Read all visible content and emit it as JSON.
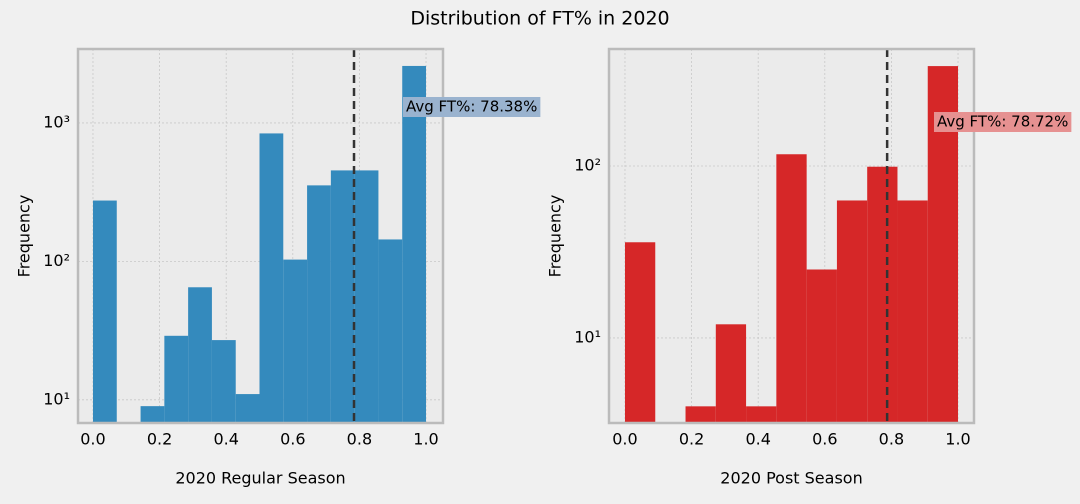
{
  "title": "Distribution of FT% in 2020",
  "chart_data": [
    {
      "type": "histogram",
      "xlabel": "2020 Regular Season",
      "ylabel": "Frequency",
      "log_y": true,
      "grid": true,
      "color": "#348abd",
      "bins": [
        0,
        0.0714,
        0.1429,
        0.2143,
        0.2857,
        0.3571,
        0.4286,
        0.5,
        0.5714,
        0.6429,
        0.7143,
        0.7857,
        0.8571,
        0.9286,
        1
      ],
      "values": [
        275,
        0,
        9,
        29,
        65,
        27,
        11,
        840,
        103,
        354,
        454,
        454,
        144,
        2580
      ],
      "xlim": [
        -0.045,
        1.051
      ],
      "ylim": [
        6.8,
        3420
      ],
      "xticks": [
        {
          "value": 0,
          "label": "0.0"
        },
        0.2,
        0.4,
        0.6,
        0.8,
        {
          "value": 1,
          "label": "1.0"
        }
      ],
      "yticks": [
        {
          "value": 10,
          "label": "10¹"
        },
        {
          "value": 100,
          "label": "10²"
        },
        {
          "value": 1000,
          "label": "10³"
        }
      ],
      "avg_line": 0.7838,
      "annotation": "Avg FT%: 78.38%",
      "annotation_color": "#9ab3cf"
    },
    {
      "type": "histogram",
      "xlabel": "2020 Post Season",
      "ylabel": "Frequency",
      "log_y": true,
      "grid": true,
      "color": "#d62728",
      "bins": [
        0,
        0.0909,
        0.1818,
        0.2727,
        0.3636,
        0.4545,
        0.5455,
        0.6364,
        0.7273,
        0.8182,
        0.9091,
        1
      ],
      "values": [
        36,
        0,
        4,
        12,
        4,
        117,
        25,
        63,
        99,
        63,
        381
      ],
      "xlim": [
        -0.048,
        1.048
      ],
      "ylim": [
        3.2,
        479
      ],
      "xticks": [
        {
          "value": 0,
          "label": "0.0"
        },
        0.2,
        0.4,
        0.6,
        0.8,
        {
          "value": 1,
          "label": "1.0"
        }
      ],
      "yticks": [
        {
          "value": 10,
          "label": "10¹"
        },
        {
          "value": 100,
          "label": "10²"
        }
      ],
      "avg_line": 0.7872,
      "annotation": "Avg FT%: 78.72%",
      "annotation_color": "#e69191"
    }
  ]
}
